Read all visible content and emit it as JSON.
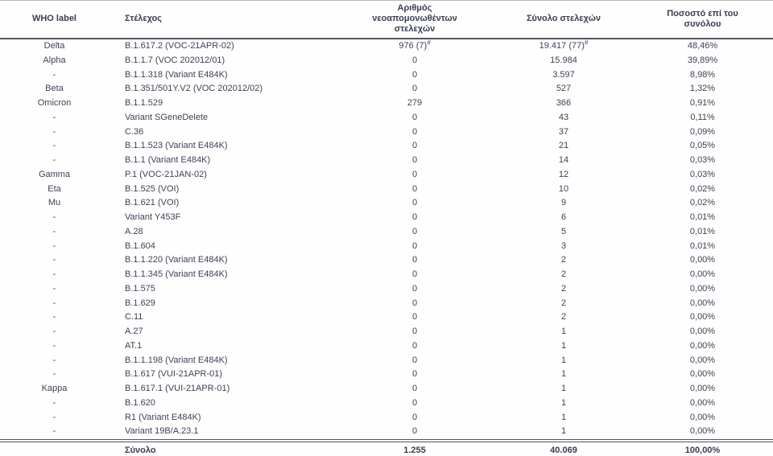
{
  "table": {
    "headers": {
      "who": "WHO label",
      "strain": "Στέλεχος",
      "new_isolated": "Αριθμός νεοαπομονωθέντων στελεχών",
      "total": "Σύνολο στελεχών",
      "pct": "Ποσοστό επί του συνόλου"
    },
    "rows": [
      {
        "who": "Delta",
        "strain": "B.1.617.2 (VOC-21APR-02)",
        "new": "976 (7)",
        "new_sup": "#",
        "total": "19.417 (77)",
        "total_sup": "#",
        "pct": "48,46%"
      },
      {
        "who": "Alpha",
        "strain": "B.1.1.7 (VOC 202012/01)",
        "new": "0",
        "total": "15.984",
        "pct": "39,89%"
      },
      {
        "who": "-",
        "strain": "B.1.1.318 (Variant E484K)",
        "new": "0",
        "total": "3.597",
        "pct": "8,98%"
      },
      {
        "who": "Beta",
        "strain": "B.1.351/501Y.V2 (VOC 202012/02)",
        "new": "0",
        "total": "527",
        "pct": "1,32%"
      },
      {
        "who": "Omicron",
        "strain": "B.1.1.529",
        "new": "279",
        "total": "366",
        "pct": "0,91%"
      },
      {
        "who": "-",
        "strain": "Variant SGeneDelete",
        "new": "0",
        "total": "43",
        "pct": "0,11%"
      },
      {
        "who": "-",
        "strain": "C.36",
        "new": "0",
        "total": "37",
        "pct": "0,09%"
      },
      {
        "who": "-",
        "strain": "B.1.1.523 (Variant E484K)",
        "new": "0",
        "total": "21",
        "pct": "0,05%"
      },
      {
        "who": "-",
        "strain": "B.1.1 (Variant E484K)",
        "new": "0",
        "total": "14",
        "pct": "0,03%"
      },
      {
        "who": "Gamma",
        "strain": "P.1 (VOC-21JAN-02)",
        "new": "0",
        "total": "12",
        "pct": "0,03%"
      },
      {
        "who": "Eta",
        "strain": "B.1.525 (VOI)",
        "new": "0",
        "total": "10",
        "pct": "0,02%"
      },
      {
        "who": "Mu",
        "strain": "B.1.621 (VOI)",
        "new": "0",
        "total": "9",
        "pct": "0,02%"
      },
      {
        "who": "-",
        "strain": "Variant Y453F",
        "new": "0",
        "total": "6",
        "pct": "0,01%"
      },
      {
        "who": "-",
        "strain": "A.28",
        "new": "0",
        "total": "5",
        "pct": "0,01%"
      },
      {
        "who": "-",
        "strain": "B.1.604",
        "new": "0",
        "total": "3",
        "pct": "0,01%"
      },
      {
        "who": "-",
        "strain": "B.1.1.220 (Variant E484K)",
        "new": "0",
        "total": "2",
        "pct": "0,00%"
      },
      {
        "who": "-",
        "strain": "B.1.1.345 (Variant E484K)",
        "new": "0",
        "total": "2",
        "pct": "0,00%"
      },
      {
        "who": "-",
        "strain": "B.1.575",
        "new": "0",
        "total": "2",
        "pct": "0,00%"
      },
      {
        "who": "-",
        "strain": "B.1.629",
        "new": "0",
        "total": "2",
        "pct": "0,00%"
      },
      {
        "who": "-",
        "strain": "C.11",
        "new": "0",
        "total": "2",
        "pct": "0,00%"
      },
      {
        "who": "-",
        "strain": "A.27",
        "new": "0",
        "total": "1",
        "pct": "0,00%"
      },
      {
        "who": "-",
        "strain": "AT.1",
        "new": "0",
        "total": "1",
        "pct": "0,00%"
      },
      {
        "who": "-",
        "strain": "B.1.1.198 (Variant E484K)",
        "new": "0",
        "total": "1",
        "pct": "0,00%"
      },
      {
        "who": "-",
        "strain": "B.1.617 (VUI-21APR-01)",
        "new": "0",
        "total": "1",
        "pct": "0,00%"
      },
      {
        "who": "Kappa",
        "strain": "B.1.617.1 (VUI-21APR-01)",
        "new": "0",
        "total": "1",
        "pct": "0,00%"
      },
      {
        "who": "-",
        "strain": "B.1.620",
        "new": "0",
        "total": "1",
        "pct": "0,00%"
      },
      {
        "who": "-",
        "strain": "R1 (Variant E484K)",
        "new": "0",
        "total": "1",
        "pct": "0,00%"
      },
      {
        "who": "-",
        "strain": "Variant 19B/A.23.1",
        "new": "0",
        "total": "1",
        "pct": "0,00%"
      }
    ],
    "totals": {
      "who": "",
      "strain": "Σύνολο",
      "new": "1.255",
      "total": "40.069",
      "pct": "100,00%"
    }
  },
  "colors": {
    "text": "#3e4356",
    "rule_dark": "#54565e",
    "rule_light": "#b3b3b3"
  }
}
